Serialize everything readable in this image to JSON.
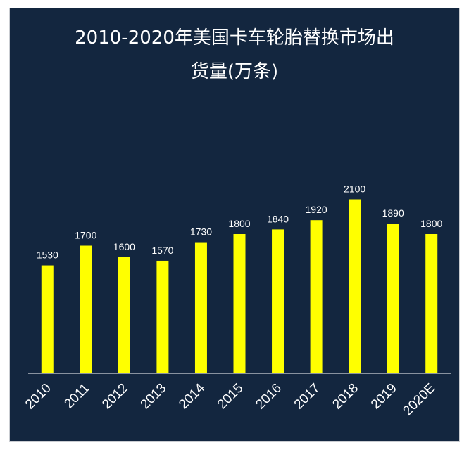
{
  "chart_data": {
    "type": "bar",
    "title_line1": "2010-2020年美国卡车轮胎替换市场出",
    "title_line2": "货量(万条)",
    "categories": [
      "2010",
      "2011",
      "2012",
      "2013",
      "2014",
      "2015",
      "2016",
      "2017",
      "2018",
      "2019",
      "2020E"
    ],
    "values": [
      1530,
      1700,
      1600,
      1570,
      1730,
      1800,
      1840,
      1920,
      2100,
      1890,
      1800
    ],
    "value_labels": [
      "1530",
      "1700",
      "1600",
      "1570",
      "1730",
      "1800",
      "1840",
      "1920",
      "2100",
      "1890",
      "1800"
    ],
    "xlabel": "",
    "ylabel": "",
    "ylim": [
      600,
      2400
    ],
    "grid": false,
    "legend": "none",
    "colors": {
      "background": "#13263f",
      "bar": "#ffff00",
      "text": "#ffffff",
      "axis": "#ffffff"
    }
  }
}
